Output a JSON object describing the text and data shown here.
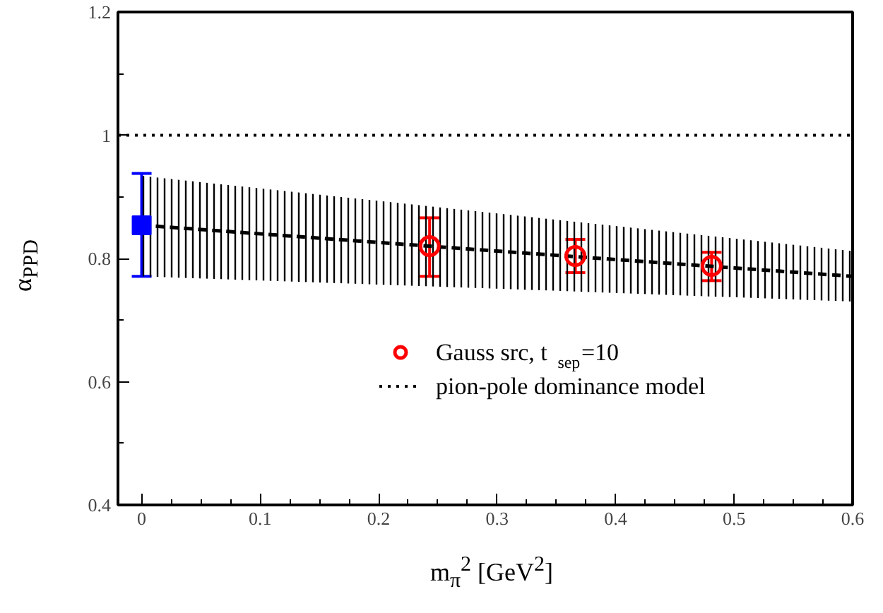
{
  "chart_data": {
    "type": "scatter",
    "xlabel": "m$_{π}$$^{2}$ [GeV$^{2}$]",
    "ylabel": "α$_{PPD}$",
    "xlim": [
      -0.02,
      0.6
    ],
    "ylim": [
      0.4,
      1.2
    ],
    "xticks": [
      0,
      0.1,
      0.2,
      0.3,
      0.4,
      0.5,
      0.6
    ],
    "yticks": [
      0.4,
      0.6,
      0.8,
      {
        "value": 1,
        "label": "1"
      },
      1.2
    ],
    "grid": false,
    "legend": "bottom",
    "series": [
      {
        "type": "line",
        "color": "#000000",
        "line_style": "dashed",
        "x": [
          0,
          0.3,
          0.6
        ],
        "values": [
          0.854,
          0.812,
          0.771
        ],
        "lower": [
          0.771,
          0.751,
          0.73
        ],
        "upper": [
          0.934,
          0.873,
          0.812
        ]
      },
      {
        "name": "Gauss src, t$_{sep}$=10",
        "color": "#ff0000",
        "marker": "circle",
        "x": [
          0.243,
          0.366,
          0.481
        ],
        "values": [
          0.82,
          0.804,
          0.788
        ],
        "errors": [
          [
            0.771,
            0.866
          ],
          [
            0.777,
            0.831
          ],
          [
            0.764,
            0.81
          ]
        ]
      },
      {
        "color": "#0000ff",
        "marker": "square",
        "x": [
          0
        ],
        "values": [
          0.854
        ],
        "errors": [
          [
            0.771,
            0.938
          ]
        ]
      }
    ],
    "ref_lines": [
      {
        "axis": "y",
        "value": 1,
        "label": "pion-pole dominance model",
        "color": "#000000",
        "line_style": "dotted"
      }
    ]
  }
}
